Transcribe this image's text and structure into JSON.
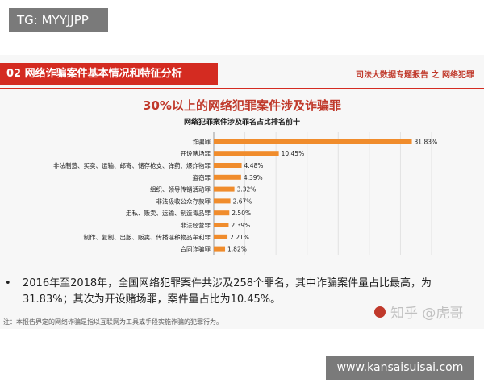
{
  "top_badge": "TG: MYYJJPP",
  "bottom_badge": "www.kansaisuisai.com",
  "slide": {
    "header_title": "02 网络诈骗案件基本情况和特征分析",
    "header_right_prefix": "司法大数据专题报告",
    "header_right_accent": "之",
    "header_right_suffix": "网络犯罪",
    "bullet_text": "2016年至2018年，全国网络犯罪案件共涉及258个罪名，其中诈骗案件量占比最高，为31.83%；其次为开设赌场罪，案件量占比为10.45%。",
    "footnote": "注：本报告界定的网络诈骗是指以互联网为工具或手段实施诈骗的犯罪行为。",
    "watermark": "知乎 @虎哥"
  },
  "colors": {
    "bar": "#f08c2c",
    "accent_red": "#d42b21",
    "badge_gray": "#7a7a7a"
  },
  "chart_data": {
    "type": "bar",
    "orientation": "horizontal",
    "title": "30%以上的网络犯罪案件涉及诈骗罪",
    "subtitle": "网络犯罪案件涉及罪名占比排名前十",
    "categories": [
      "诈骗罪",
      "开设赌场罪",
      "非法制造、买卖、运输、邮寄、储存枪支、弹药、爆炸物罪",
      "盗窃罪",
      "组织、领导传销活动罪",
      "非法吸收公众存款罪",
      "走私、贩卖、运输、制造毒品罪",
      "非法经营罪",
      "制作、复制、出版、贩卖、传播淫秽物品牟利罪",
      "合同诈骗罪"
    ],
    "value_labels": [
      "31.83%",
      "10.45%",
      "4.48%",
      "4.39%",
      "3.32%",
      "2.67%",
      "2.50%",
      "2.39%",
      "2.21%",
      "1.82%"
    ],
    "series": [
      {
        "name": "占比",
        "values": [
          31.83,
          10.45,
          4.48,
          4.39,
          3.32,
          2.67,
          2.5,
          2.39,
          2.21,
          1.82
        ]
      }
    ],
    "x_ticks": [
      "0%",
      "5%",
      "10%",
      "15%",
      "20%",
      "25%",
      "30%",
      "35%"
    ],
    "xlim": [
      0,
      35
    ],
    "grid": true,
    "legend_position": "bottom"
  }
}
